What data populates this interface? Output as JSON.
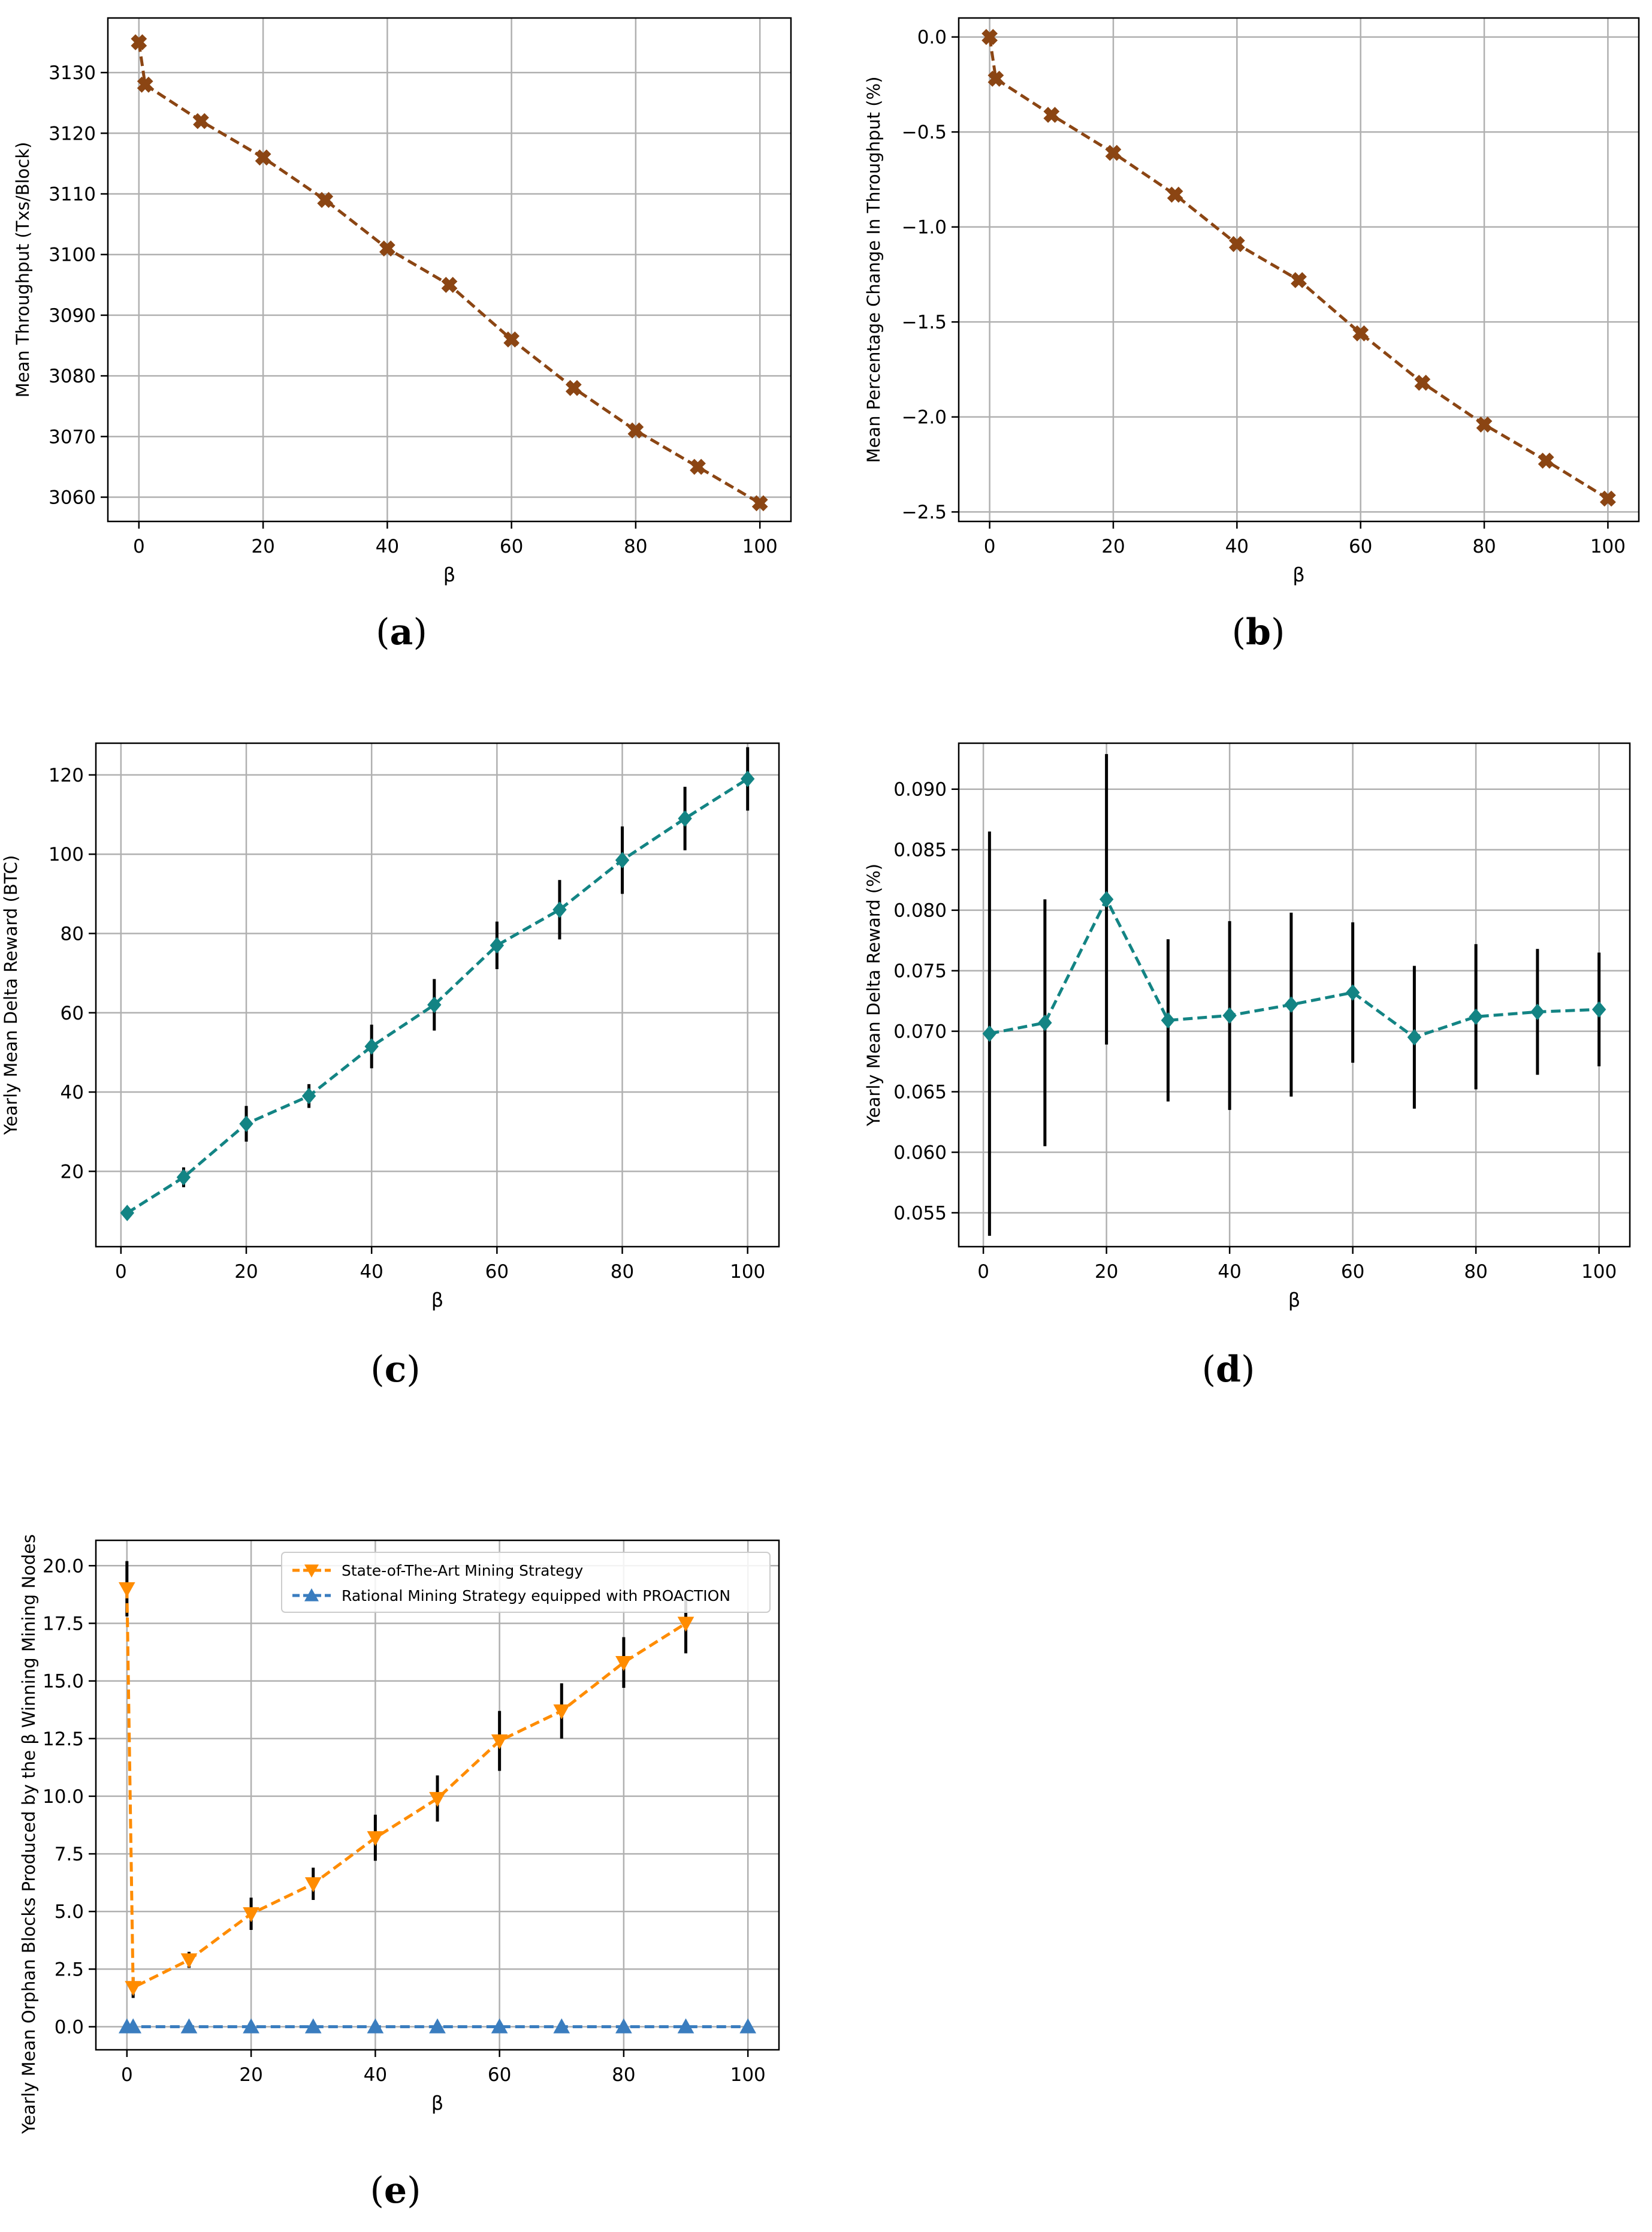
{
  "captions": {
    "a": "a",
    "b": "b",
    "c": "c",
    "d": "d",
    "e": "e"
  },
  "chart_data": [
    {
      "id": "a",
      "type": "line",
      "title": "",
      "xlabel": "β",
      "ylabel": "Mean Throughput (Txs/Block)",
      "xlim": [
        -5,
        105
      ],
      "ylim": [
        3056,
        3139
      ],
      "xticks": [
        0,
        20,
        40,
        60,
        80,
        100
      ],
      "yticks": [
        3060,
        3070,
        3080,
        3090,
        3100,
        3110,
        3120,
        3130
      ],
      "grid": true,
      "color": "#8B4513",
      "marker": "X",
      "series": [
        {
          "name": "",
          "x": [
            0,
            1,
            10,
            20,
            30,
            40,
            50,
            60,
            70,
            80,
            90,
            100
          ],
          "y": [
            3135,
            3128,
            3122,
            3116,
            3109,
            3101,
            3095,
            3086,
            3078,
            3071,
            3065,
            3059
          ]
        }
      ]
    },
    {
      "id": "b",
      "type": "line",
      "title": "",
      "xlabel": "β",
      "ylabel": "Mean Percentage Change In Throughput (%)",
      "xlim": [
        -5,
        105
      ],
      "ylim": [
        -2.55,
        0.1
      ],
      "xticks": [
        0,
        20,
        40,
        60,
        80,
        100
      ],
      "yticks": [
        0.0,
        -0.5,
        -1.0,
        -1.5,
        -2.0,
        -2.5
      ],
      "ytick_labels": [
        "0.0",
        "−0.5",
        "−1.0",
        "−1.5",
        "−2.0",
        "−2.5"
      ],
      "grid": true,
      "color": "#8B4513",
      "marker": "X",
      "series": [
        {
          "name": "",
          "x": [
            0,
            1,
            10,
            20,
            30,
            40,
            50,
            60,
            70,
            80,
            90,
            100
          ],
          "y": [
            0.0,
            -0.22,
            -0.41,
            -0.61,
            -0.83,
            -1.09,
            -1.28,
            -1.56,
            -1.82,
            -2.04,
            -2.23,
            -2.43
          ]
        }
      ]
    },
    {
      "id": "c",
      "type": "line",
      "title": "",
      "xlabel": "β",
      "ylabel": "Yearly Mean Delta Reward (BTC)",
      "xlim": [
        -4,
        105
      ],
      "ylim": [
        1,
        128
      ],
      "xticks": [
        0,
        20,
        40,
        60,
        80,
        100
      ],
      "yticks": [
        20,
        40,
        60,
        80,
        100,
        120
      ],
      "grid": true,
      "color": "#138484",
      "marker": "D",
      "series": [
        {
          "name": "",
          "x": [
            1,
            10,
            20,
            30,
            40,
            50,
            60,
            70,
            80,
            90,
            100
          ],
          "y": [
            9.5,
            18.5,
            32,
            39,
            51.5,
            62,
            77,
            86,
            98.5,
            109,
            119
          ],
          "err": [
            1.2,
            2.5,
            4.5,
            3,
            5.5,
            6.5,
            6,
            7.5,
            8.5,
            8,
            8
          ]
        }
      ]
    },
    {
      "id": "d",
      "type": "line",
      "title": "",
      "xlabel": "β",
      "ylabel": "Yearly Mean Delta Reward (%)",
      "xlim": [
        -4,
        105
      ],
      "ylim": [
        0.0522,
        0.0938
      ],
      "xticks": [
        0,
        20,
        40,
        60,
        80,
        100
      ],
      "yticks": [
        0.055,
        0.06,
        0.065,
        0.07,
        0.075,
        0.08,
        0.085,
        0.09
      ],
      "ytick_labels": [
        "0.055",
        "0.060",
        "0.065",
        "0.070",
        "0.075",
        "0.080",
        "0.085",
        "0.090"
      ],
      "grid": true,
      "color": "#138484",
      "marker": "D",
      "series": [
        {
          "name": "",
          "x": [
            1,
            10,
            20,
            30,
            40,
            50,
            60,
            70,
            80,
            90,
            100
          ],
          "y": [
            0.0698,
            0.0707,
            0.0809,
            0.0709,
            0.0713,
            0.0722,
            0.0732,
            0.0695,
            0.0712,
            0.0716,
            0.0718
          ],
          "err": [
            0.0167,
            0.0102,
            0.012,
            0.0067,
            0.0078,
            0.0076,
            0.0058,
            0.0059,
            0.006,
            0.0052,
            0.0047
          ]
        }
      ]
    },
    {
      "id": "e",
      "type": "line",
      "title": "",
      "xlabel": "β",
      "ylabel": "Yearly Mean Orphan Blocks Produced by the β Winning Mining Nodes",
      "xlim": [
        -5,
        105
      ],
      "ylim": [
        -1.0,
        21.1
      ],
      "xticks": [
        0,
        20,
        40,
        60,
        80,
        100
      ],
      "yticks": [
        0.0,
        2.5,
        5.0,
        7.5,
        10.0,
        12.5,
        15.0,
        17.5,
        20.0
      ],
      "ytick_labels": [
        "0.0",
        "2.5",
        "5.0",
        "7.5",
        "10.0",
        "12.5",
        "15.0",
        "17.5",
        "20.0"
      ],
      "grid": true,
      "legend": "top-right",
      "series": [
        {
          "name": "State-of-The-Art Mining Strategy",
          "color": "#FF8C00",
          "marker": "v",
          "x": [
            0,
            1,
            10,
            20,
            30,
            40,
            50,
            60,
            70,
            80,
            90
          ],
          "y": [
            19.0,
            1.7,
            2.9,
            4.9,
            6.2,
            8.2,
            9.9,
            12.4,
            13.7,
            15.8,
            17.5
          ],
          "err": [
            1.2,
            0.45,
            0.35,
            0.7,
            0.7,
            1.0,
            1.0,
            1.3,
            1.2,
            1.1,
            1.3
          ]
        },
        {
          "name": "Rational Mining Strategy equipped with PROACTION",
          "color": "#3A7DBF",
          "marker": "^",
          "x": [
            0,
            1,
            10,
            20,
            30,
            40,
            50,
            60,
            70,
            80,
            90,
            100
          ],
          "y": [
            0,
            0,
            0,
            0,
            0,
            0,
            0,
            0,
            0,
            0,
            0,
            0
          ]
        }
      ]
    }
  ]
}
